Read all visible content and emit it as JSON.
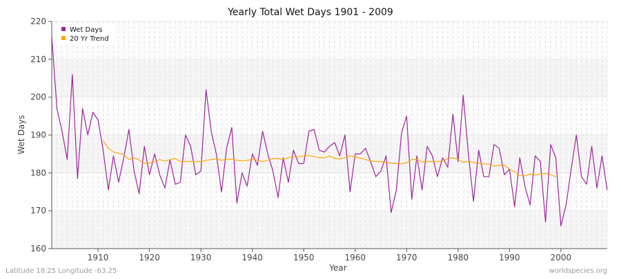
{
  "chart_data": {
    "type": "line",
    "title": "Yearly Total Wet Days 1901 - 2009",
    "xlabel": "Year",
    "ylabel": "Wet Days",
    "xlim": [
      1901,
      2009
    ],
    "ylim": [
      160,
      220
    ],
    "xticks": [
      1910,
      1920,
      1930,
      1940,
      1950,
      1960,
      1970,
      1980,
      1990,
      2000
    ],
    "yticks": [
      160,
      170,
      180,
      190,
      200,
      210,
      220
    ],
    "grid": true,
    "legend_position": "top-left",
    "series": [
      {
        "name": "Wet Days",
        "color": "#a020a0",
        "x": [
          1901,
          1902,
          1903,
          1904,
          1905,
          1906,
          1907,
          1908,
          1909,
          1910,
          1911,
          1912,
          1913,
          1914,
          1915,
          1916,
          1917,
          1918,
          1919,
          1920,
          1921,
          1922,
          1923,
          1924,
          1925,
          1926,
          1927,
          1928,
          1929,
          1930,
          1931,
          1932,
          1933,
          1934,
          1935,
          1936,
          1937,
          1938,
          1939,
          1940,
          1941,
          1942,
          1943,
          1944,
          1945,
          1946,
          1947,
          1948,
          1949,
          1950,
          1951,
          1952,
          1953,
          1954,
          1955,
          1956,
          1957,
          1958,
          1959,
          1960,
          1961,
          1962,
          1963,
          1964,
          1965,
          1966,
          1967,
          1968,
          1969,
          1970,
          1971,
          1972,
          1973,
          1974,
          1975,
          1976,
          1977,
          1978,
          1979,
          1980,
          1981,
          1982,
          1983,
          1984,
          1985,
          1986,
          1987,
          1988,
          1989,
          1990,
          1991,
          1992,
          1993,
          1994,
          1995,
          1996,
          1997,
          1998,
          1999,
          2000,
          2001,
          2002,
          2003,
          2004,
          2005,
          2006,
          2007,
          2008,
          2009
        ],
        "values": [
          216,
          197,
          191,
          183.5,
          206,
          178.5,
          197,
          190,
          196,
          194,
          186,
          175.5,
          184.5,
          177.5,
          184,
          191.5,
          180.5,
          174.5,
          187,
          179.5,
          185,
          179.5,
          176,
          183.5,
          177,
          177.5,
          190,
          187,
          179.5,
          180.5,
          202,
          191,
          185,
          175,
          186.5,
          192,
          172,
          180,
          176.5,
          185,
          182,
          191,
          185,
          180.5,
          173.5,
          184,
          177.5,
          186,
          182.5,
          182.5,
          191,
          191.5,
          186,
          185.5,
          187,
          188,
          184.5,
          190,
          175,
          185,
          185,
          186.5,
          183,
          179,
          180.5,
          184.5,
          169.5,
          175.5,
          190.5,
          195,
          173,
          184.5,
          175.5,
          187,
          184.5,
          179,
          184,
          181.5,
          195.5,
          183,
          200.5,
          185,
          172.5,
          186,
          179,
          179,
          187.5,
          186.5,
          179.5,
          181,
          171,
          184,
          176.5,
          171.5,
          184.5,
          183,
          167,
          187.5,
          184,
          166,
          171.5,
          181,
          190,
          179,
          177,
          187,
          176,
          184.5,
          175.5
        ]
      },
      {
        "name": "20 Yr Trend",
        "color": "#ffa500",
        "x": [
          1911,
          1912,
          1913,
          1914,
          1915,
          1916,
          1917,
          1918,
          1919,
          1920,
          1921,
          1922,
          1923,
          1924,
          1925,
          1926,
          1927,
          1928,
          1929,
          1930,
          1931,
          1932,
          1933,
          1934,
          1935,
          1936,
          1937,
          1938,
          1939,
          1940,
          1941,
          1942,
          1943,
          1944,
          1945,
          1946,
          1947,
          1948,
          1949,
          1950,
          1951,
          1952,
          1953,
          1954,
          1955,
          1956,
          1957,
          1958,
          1959,
          1960,
          1961,
          1962,
          1963,
          1964,
          1965,
          1966,
          1967,
          1968,
          1969,
          1970,
          1971,
          1972,
          1973,
          1974,
          1975,
          1976,
          1977,
          1978,
          1979,
          1980,
          1981,
          1982,
          1983,
          1984,
          1985,
          1986,
          1987,
          1988,
          1989,
          1990,
          1991,
          1992,
          1993,
          1994,
          1995,
          1996,
          1997,
          1998,
          1999
        ],
        "values": [
          188.5,
          186.5,
          185.5,
          185.2,
          184.8,
          183.5,
          184,
          183.4,
          182.5,
          182.6,
          183,
          183.5,
          183.1,
          183.5,
          183.8,
          183,
          183,
          183,
          182.9,
          183,
          183.3,
          183.5,
          183.7,
          183.3,
          183.6,
          183.6,
          183.3,
          183.2,
          183.3,
          183.6,
          183.3,
          183,
          183.3,
          183.8,
          183.8,
          183.5,
          184,
          184.3,
          184.3,
          184.5,
          184.6,
          184.3,
          184,
          184,
          184.5,
          183.8,
          183.7,
          184,
          184.5,
          184.3,
          183.9,
          183.5,
          183.2,
          183,
          183,
          182.8,
          182.6,
          182.5,
          182.4,
          182.7,
          183.5,
          183.6,
          182.9,
          183,
          183,
          183,
          183.1,
          183.8,
          184,
          183.5,
          182.8,
          183,
          182.8,
          182.5,
          182.4,
          182.3,
          181.8,
          182,
          182.1,
          181,
          180.3,
          179.3,
          179.2,
          179.7,
          179.4,
          179.7,
          179.8,
          179.5,
          179
        ]
      }
    ]
  },
  "footer": {
    "location": "Latitude 18.25 Longitude -63.25",
    "source": "worldspecies.org"
  }
}
